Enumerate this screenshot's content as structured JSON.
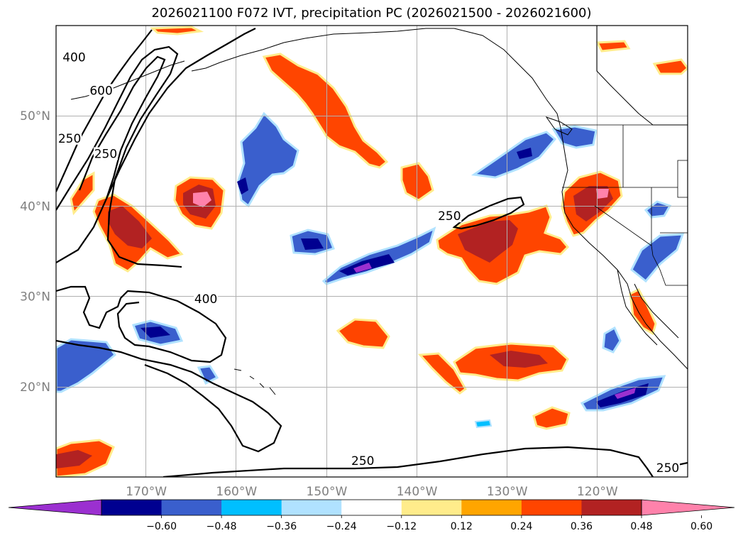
{
  "title": "2026021100 F072 IVT, precipitation PC (2026021500 - 2026021600)",
  "map": {
    "lon_range": [
      -180,
      -110
    ],
    "lat_range": [
      10,
      60
    ],
    "lon_ticks": [
      {
        "value": -170,
        "label": "170°W"
      },
      {
        "value": -160,
        "label": "160°W"
      },
      {
        "value": -150,
        "label": "150°W"
      },
      {
        "value": -140,
        "label": "140°W"
      },
      {
        "value": -130,
        "label": "130°W"
      },
      {
        "value": -120,
        "label": "120°W"
      }
    ],
    "lat_ticks": [
      {
        "value": 20,
        "label": "20°N"
      },
      {
        "value": 30,
        "label": "30°N"
      },
      {
        "value": 40,
        "label": "40°N"
      },
      {
        "value": 50,
        "label": "50°N"
      }
    ],
    "contour_labels": [
      {
        "text": "400",
        "lon": -178.0,
        "lat": 56.2
      },
      {
        "text": "600",
        "lon": -175.0,
        "lat": 52.5
      },
      {
        "text": "250",
        "lon": -178.5,
        "lat": 47.2
      },
      {
        "text": "250",
        "lon": -174.5,
        "lat": 45.5
      },
      {
        "text": "400",
        "lon": -163.4,
        "lat": 29.4
      },
      {
        "text": "250",
        "lon": -136.4,
        "lat": 38.6
      },
      {
        "text": "250",
        "lon": -146.0,
        "lat": 11.5
      },
      {
        "text": "250",
        "lon": -112.2,
        "lat": 10.7
      }
    ]
  },
  "colorbar": {
    "colors": [
      "#9b30d0",
      "#000090",
      "#3a5fcd",
      "#00bfff",
      "#b0e2ff",
      "#ffffff",
      "#ffec8b",
      "#ffa500",
      "#ff4500",
      "#b22222",
      "#ff82ab"
    ],
    "tick_labels": [
      "−0.60",
      "−0.48",
      "−0.36",
      "−0.24",
      "−0.12",
      "0.12",
      "0.24",
      "0.36",
      "0.48",
      "0.60"
    ]
  },
  "colors": {
    "grid": "#b0b0b0",
    "tick_text": "#7f7f7f",
    "positive_dark": "#b22222",
    "positive": "#ff4500",
    "positive_light": "#ffa500",
    "positive_edge": "#ffec8b",
    "positive_peak": "#ff82ab",
    "negative_dark": "#000090",
    "negative": "#3a5fcd",
    "negative_light": "#00bfff",
    "negative_edge": "#b0e2ff",
    "negative_peak": "#9b30d0"
  }
}
